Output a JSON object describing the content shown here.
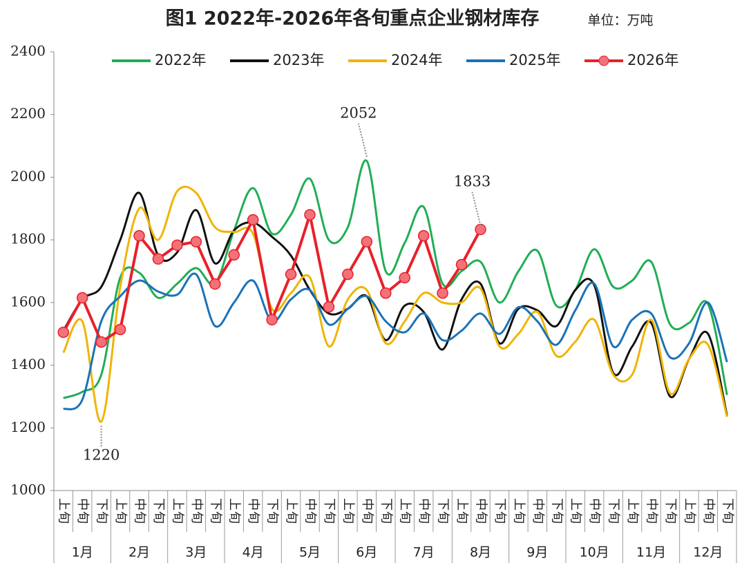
{
  "chart_data": {
    "type": "line",
    "title": "图1 2022年-2026年各旬重点企业钢材库存",
    "subtitle": "单位：万吨",
    "categories": [
      "上旬",
      "中旬",
      "下旬",
      "上旬",
      "中旬",
      "下旬",
      "上旬",
      "中旬",
      "下旬",
      "上旬",
      "中旬",
      "下旬",
      "上旬",
      "中旬",
      "下旬",
      "上旬",
      "中旬",
      "下旬",
      "上旬",
      "中旬",
      "下旬",
      "上旬",
      "中旬",
      "下旬",
      "上旬",
      "中旬",
      "下旬",
      "上旬",
      "中旬",
      "下旬",
      "上旬",
      "中旬",
      "下旬",
      "上旬",
      "中旬",
      "下旬"
    ],
    "groups": [
      "1月",
      "2月",
      "3月",
      "4月",
      "5月",
      "6月",
      "7月",
      "8月",
      "9月",
      "10月",
      "11月",
      "12月"
    ],
    "ylim": [
      1000,
      2400
    ],
    "yticks": [
      1000,
      1200,
      1400,
      1600,
      1800,
      2000,
      2200,
      2400
    ],
    "legend": "top",
    "series": [
      {
        "name": "2022年",
        "color": "#1fae54",
        "smooth": true,
        "values": [
          1295,
          1315,
          1370,
          1680,
          1695,
          1615,
          1660,
          1710,
          1660,
          1830,
          1965,
          1820,
          1880,
          1995,
          1800,
          1840,
          2052,
          1700,
          1790,
          1905,
          1660,
          1700,
          1730,
          1600,
          1700,
          1765,
          1590,
          1640,
          1770,
          1650,
          1670,
          1730,
          1530,
          1535,
          1595,
          1305
        ]
      },
      {
        "name": "2023年",
        "color": "#111111",
        "smooth": true,
        "values": [
          1510,
          1610,
          1650,
          1800,
          1950,
          1750,
          1760,
          1895,
          1725,
          1830,
          1855,
          1810,
          1750,
          1640,
          1565,
          1580,
          1620,
          1480,
          1590,
          1570,
          1450,
          1610,
          1660,
          1470,
          1580,
          1575,
          1525,
          1640,
          1655,
          1375,
          1460,
          1535,
          1300,
          1420,
          1500,
          1240
        ]
      },
      {
        "name": "2024年",
        "color": "#f0b400",
        "smooth": true,
        "values": [
          1440,
          1540,
          1220,
          1650,
          1900,
          1800,
          1955,
          1950,
          1840,
          1825,
          1820,
          1580,
          1630,
          1680,
          1460,
          1610,
          1640,
          1470,
          1540,
          1630,
          1600,
          1600,
          1645,
          1460,
          1500,
          1570,
          1430,
          1475,
          1545,
          1370,
          1370,
          1545,
          1310,
          1420,
          1465,
          1235
        ]
      },
      {
        "name": "2025年",
        "color": "#1a72b8",
        "smooth": true,
        "values": [
          1260,
          1290,
          1540,
          1620,
          1670,
          1635,
          1625,
          1690,
          1525,
          1600,
          1670,
          1540,
          1610,
          1640,
          1530,
          1580,
          1620,
          1540,
          1505,
          1565,
          1480,
          1510,
          1565,
          1500,
          1585,
          1540,
          1465,
          1575,
          1660,
          1460,
          1545,
          1565,
          1425,
          1470,
          1600,
          1410
        ]
      },
      {
        "name": "2026年",
        "color": "#e8202a",
        "smooth": false,
        "markers": true,
        "values": [
          1505,
          1615,
          1474,
          1514,
          1813,
          1739,
          1783,
          1794,
          1659,
          1752,
          1864,
          1545,
          1690,
          1880,
          1586,
          1690,
          1794,
          1630,
          1679,
          1813,
          1630,
          1721,
          1833,
          null,
          null,
          null,
          null,
          null,
          null,
          null,
          null,
          null,
          null,
          null,
          null,
          null
        ]
      }
    ],
    "annotations": [
      {
        "text": "2052",
        "series": 0,
        "index": 16
      },
      {
        "text": "1220",
        "series": 2,
        "index": 2
      },
      {
        "text": "1833",
        "series": 4,
        "index": 22
      }
    ]
  }
}
